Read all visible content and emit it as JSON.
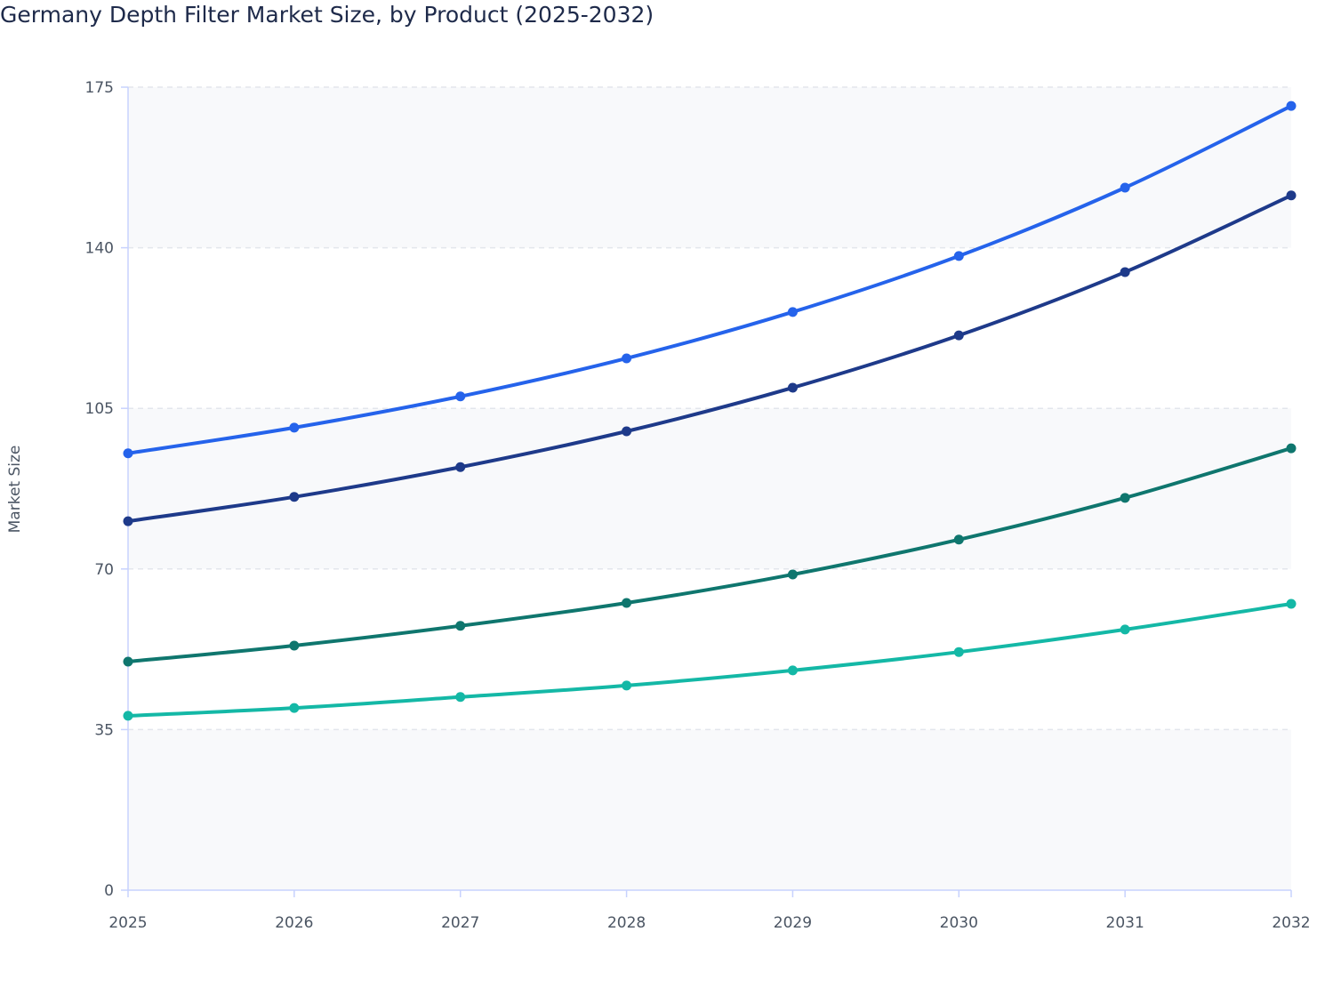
{
  "chart_data": {
    "type": "line",
    "title": "Germany Depth Filter Market Size, by Product (2025-2032)",
    "xlabel": "",
    "ylabel": "Market Size",
    "x": [
      "2025",
      "2026",
      "2027",
      "2028",
      "2029",
      "2030",
      "2031",
      "2032"
    ],
    "ylim": [
      0,
      175
    ],
    "yticks": [
      0,
      35,
      70,
      105,
      140,
      175
    ],
    "grid": true,
    "series": [
      {
        "color": "#2563eb",
        "values": [
          95.2,
          100.8,
          107.6,
          115.9,
          126.0,
          138.2,
          153.1,
          170.9
        ]
      },
      {
        "color": "#1e3a8a",
        "values": [
          80.4,
          85.7,
          92.2,
          100.0,
          109.5,
          120.9,
          134.7,
          151.4
        ]
      },
      {
        "color": "#0f766e",
        "values": [
          49.8,
          53.3,
          57.6,
          62.6,
          68.8,
          76.4,
          85.5,
          96.3
        ]
      },
      {
        "color": "#14b8a6",
        "values": [
          38.0,
          39.7,
          42.1,
          44.6,
          47.9,
          51.9,
          56.8,
          62.4
        ]
      }
    ]
  }
}
